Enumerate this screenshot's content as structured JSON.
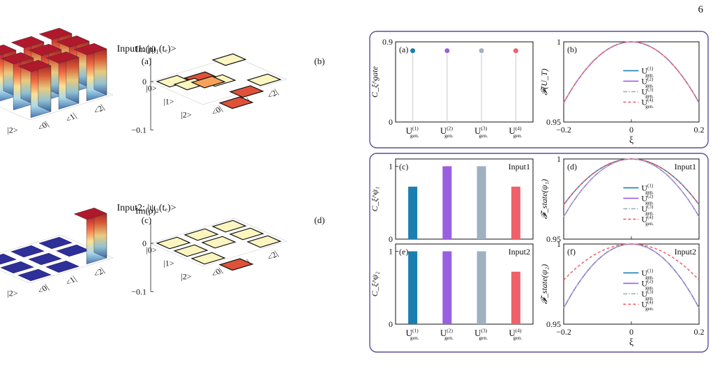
{
  "page_number": "6",
  "colors": {
    "U1": "#1a7fb0",
    "U2": "#9a5fe0",
    "U3": "#9fb0bf",
    "U4": "#f0606a",
    "frame": "#5a4e9a",
    "deep_red": "#a50f27",
    "dark_blue": "#2f2f9a",
    "pale_yellow": "#fbf5c0"
  },
  "left_figure": {
    "input1_title": "Input1: |ψ₁(tₑ)>",
    "input2_title": "Input2: |ψ₂(tₑ)>",
    "axis_re": "Re(ρ)",
    "axis_im": "Im(ρ)",
    "row_ticks": [
      "|0>",
      "|1>",
      "|2>"
    ],
    "col_ticks": [
      "<0|",
      "<1|",
      "<2|"
    ],
    "panels": {
      "a": {
        "label": "(a)",
        "z_ticks": [
          "0.4",
          "0.2",
          "0",
          "−0.2"
        ]
      },
      "b": {
        "label": "(b)",
        "z_ticks": [
          "0",
          "−0.1"
        ]
      },
      "c": {
        "label": "(c)",
        "z_ticks": [
          "1.0",
          "0.5",
          "0",
          "−0.5"
        ]
      },
      "d": {
        "label": "(d)",
        "z_ticks": [
          "0",
          "−0.1"
        ]
      }
    }
  },
  "right_figure": {
    "series_labels": [
      "U(1)gen.",
      "U(2)gen.",
      "U(3)gen.",
      "U(4)gen."
    ],
    "x_category_labels": [
      "U(1)gen.",
      "U(2)gen.",
      "U(3)gen.",
      "U(4)gen."
    ],
    "xi_label": "ξ",
    "xi_ticks": [
      "−0.2",
      "0",
      "0.2"
    ],
    "panel_a": {
      "label": "(a)",
      "ylabel": "C_ξ^gate",
      "y_ticks": [
        "0.9",
        "0"
      ]
    },
    "panel_b": {
      "label": "(b)",
      "ylabel": "𝓕(U_T)",
      "y_ticks": [
        "1",
        "0.95"
      ]
    },
    "panel_c": {
      "label": "(c)",
      "tag": "Input1",
      "ylabel": "C_ξ^ψ₁",
      "y_ticks": [
        "1",
        "0"
      ]
    },
    "panel_d": {
      "label": "(d)",
      "tag": "Input1",
      "ylabel": "𝓕_state(ψ₁)",
      "y_ticks": [
        "1",
        "0.95"
      ]
    },
    "panel_e": {
      "label": "(e)",
      "tag": "Input2",
      "ylabel": "C_ξ^ψ₂",
      "y_ticks": [
        "1",
        "0"
      ]
    },
    "panel_f": {
      "label": "(f)",
      "tag": "Input2",
      "ylabel": "𝓕_state(ψ₂)",
      "y_ticks": [
        "1",
        "0.95"
      ]
    }
  },
  "chart_data": [
    {
      "type": "bar",
      "title": "(a) Re(ρ) Input1",
      "rows": [
        "|0>",
        "|1>",
        "|2>"
      ],
      "cols": [
        "<0|",
        "<1|",
        "<2|"
      ],
      "values": [
        [
          0.33,
          0.33,
          0.33
        ],
        [
          0.33,
          0.33,
          0.33
        ],
        [
          0.33,
          0.33,
          0.33
        ]
      ],
      "zlim": [
        -0.2,
        0.4
      ]
    },
    {
      "type": "heatmap",
      "title": "(b) Im(ρ) Input1",
      "rows": [
        "|0>",
        "|1>",
        "|2>"
      ],
      "cols": [
        "<0|",
        "<1|",
        "<2|"
      ],
      "values": [
        [
          0,
          -0.01,
          0.01
        ],
        [
          0.01,
          0,
          -0.04
        ],
        [
          0.03,
          -0.03,
          0
        ]
      ],
      "zlim": [
        -0.1,
        0.05
      ]
    },
    {
      "type": "bar",
      "title": "(c) Re(ρ) Input2",
      "rows": [
        "|0>",
        "|1>",
        "|2>"
      ],
      "cols": [
        "<0|",
        "<1|",
        "<2|"
      ],
      "values": [
        [
          0,
          0,
          0
        ],
        [
          0,
          0,
          0
        ],
        [
          0,
          0,
          1.0
        ]
      ],
      "zlim": [
        -0.5,
        1.0
      ]
    },
    {
      "type": "heatmap",
      "title": "(d) Im(ρ) Input2",
      "rows": [
        "|0>",
        "|1>",
        "|2>"
      ],
      "cols": [
        "<0|",
        "<1|",
        "<2|"
      ],
      "values": [
        [
          0,
          0,
          0
        ],
        [
          0,
          0,
          0
        ],
        [
          0,
          -0.03,
          0
        ]
      ],
      "zlim": [
        -0.1,
        0.05
      ]
    },
    {
      "type": "scatter",
      "title": "(a) gate cost",
      "categories": [
        "U(1)gen.",
        "U(2)gen.",
        "U(3)gen.",
        "U(4)gen."
      ],
      "values": [
        0.8,
        0.8,
        0.8,
        0.8
      ],
      "ylim": [
        0,
        0.9
      ]
    },
    {
      "type": "line",
      "title": "(b) gate fidelity",
      "x": [
        -0.2,
        -0.15,
        -0.1,
        -0.05,
        0,
        0.05,
        0.1,
        0.15,
        0.2
      ],
      "series": [
        {
          "name": "U(1)gen.",
          "values": [
            0.962,
            0.9787,
            0.9905,
            0.9976,
            1.0,
            0.9976,
            0.9905,
            0.9787,
            0.962
          ]
        },
        {
          "name": "U(2)gen.",
          "values": [
            0.962,
            0.9787,
            0.9905,
            0.9976,
            1.0,
            0.9976,
            0.9905,
            0.9787,
            0.962
          ]
        },
        {
          "name": "U(3)gen.",
          "values": [
            0.962,
            0.9787,
            0.9905,
            0.9976,
            1.0,
            0.9976,
            0.9905,
            0.9787,
            0.962
          ]
        },
        {
          "name": "U(4)gen.",
          "values": [
            0.962,
            0.9787,
            0.9905,
            0.9976,
            1.0,
            0.9976,
            0.9905,
            0.9787,
            0.962
          ]
        }
      ],
      "xlim": [
        -0.2,
        0.2
      ],
      "ylim": [
        0.95,
        1.0
      ]
    },
    {
      "type": "bar",
      "title": "(c) Input1",
      "categories": [
        "U(1)gen.",
        "U(2)gen.",
        "U(3)gen.",
        "U(4)gen."
      ],
      "values": [
        0.72,
        1.0,
        1.0,
        0.72
      ],
      "ylim": [
        0,
        1.1
      ]
    },
    {
      "type": "line",
      "title": "(d) Input1",
      "x": [
        -0.2,
        -0.15,
        -0.1,
        -0.05,
        0,
        0.05,
        0.1,
        0.15,
        0.2
      ],
      "series": [
        {
          "name": "U(1)gen.",
          "values": [
            0.9715,
            0.984,
            0.9929,
            0.9982,
            1.0,
            0.9982,
            0.9929,
            0.984,
            0.9715
          ]
        },
        {
          "name": "U(2)gen.",
          "values": [
            0.964,
            0.9798,
            0.991,
            0.9978,
            1.0,
            0.9978,
            0.991,
            0.9798,
            0.964
          ]
        },
        {
          "name": "U(3)gen.",
          "values": [
            0.964,
            0.9798,
            0.991,
            0.9978,
            1.0,
            0.9978,
            0.991,
            0.9798,
            0.964
          ]
        },
        {
          "name": "U(4)gen.",
          "values": [
            0.9715,
            0.984,
            0.9929,
            0.9982,
            1.0,
            0.9982,
            0.9929,
            0.984,
            0.9715
          ]
        }
      ],
      "xlim": [
        -0.2,
        0.2
      ],
      "ylim": [
        0.95,
        1.0
      ]
    },
    {
      "type": "bar",
      "title": "(e) Input2",
      "categories": [
        "U(1)gen.",
        "U(2)gen.",
        "U(3)gen.",
        "U(4)gen."
      ],
      "values": [
        1.0,
        1.0,
        1.0,
        0.72
      ],
      "ylim": [
        0,
        1.1
      ]
    },
    {
      "type": "line",
      "title": "(f) Input2",
      "x": [
        -0.2,
        -0.15,
        -0.1,
        -0.05,
        0,
        0.05,
        0.1,
        0.15,
        0.2
      ],
      "series": [
        {
          "name": "U(1)gen.",
          "values": [
            0.96,
            0.9775,
            0.99,
            0.9975,
            1.0,
            0.9975,
            0.99,
            0.9775,
            0.96
          ]
        },
        {
          "name": "U(2)gen.",
          "values": [
            0.96,
            0.9775,
            0.99,
            0.9975,
            1.0,
            0.9975,
            0.99,
            0.9775,
            0.96
          ]
        },
        {
          "name": "U(3)gen.",
          "values": [
            0.96,
            0.9775,
            0.99,
            0.9975,
            1.0,
            0.9975,
            0.99,
            0.9775,
            0.96
          ]
        },
        {
          "name": "U(4)gen.",
          "values": [
            0.9775,
            0.9873,
            0.9944,
            0.9986,
            1.0,
            0.9986,
            0.9944,
            0.9873,
            0.9775
          ]
        }
      ],
      "xlim": [
        -0.2,
        0.2
      ],
      "ylim": [
        0.95,
        1.0
      ]
    }
  ]
}
